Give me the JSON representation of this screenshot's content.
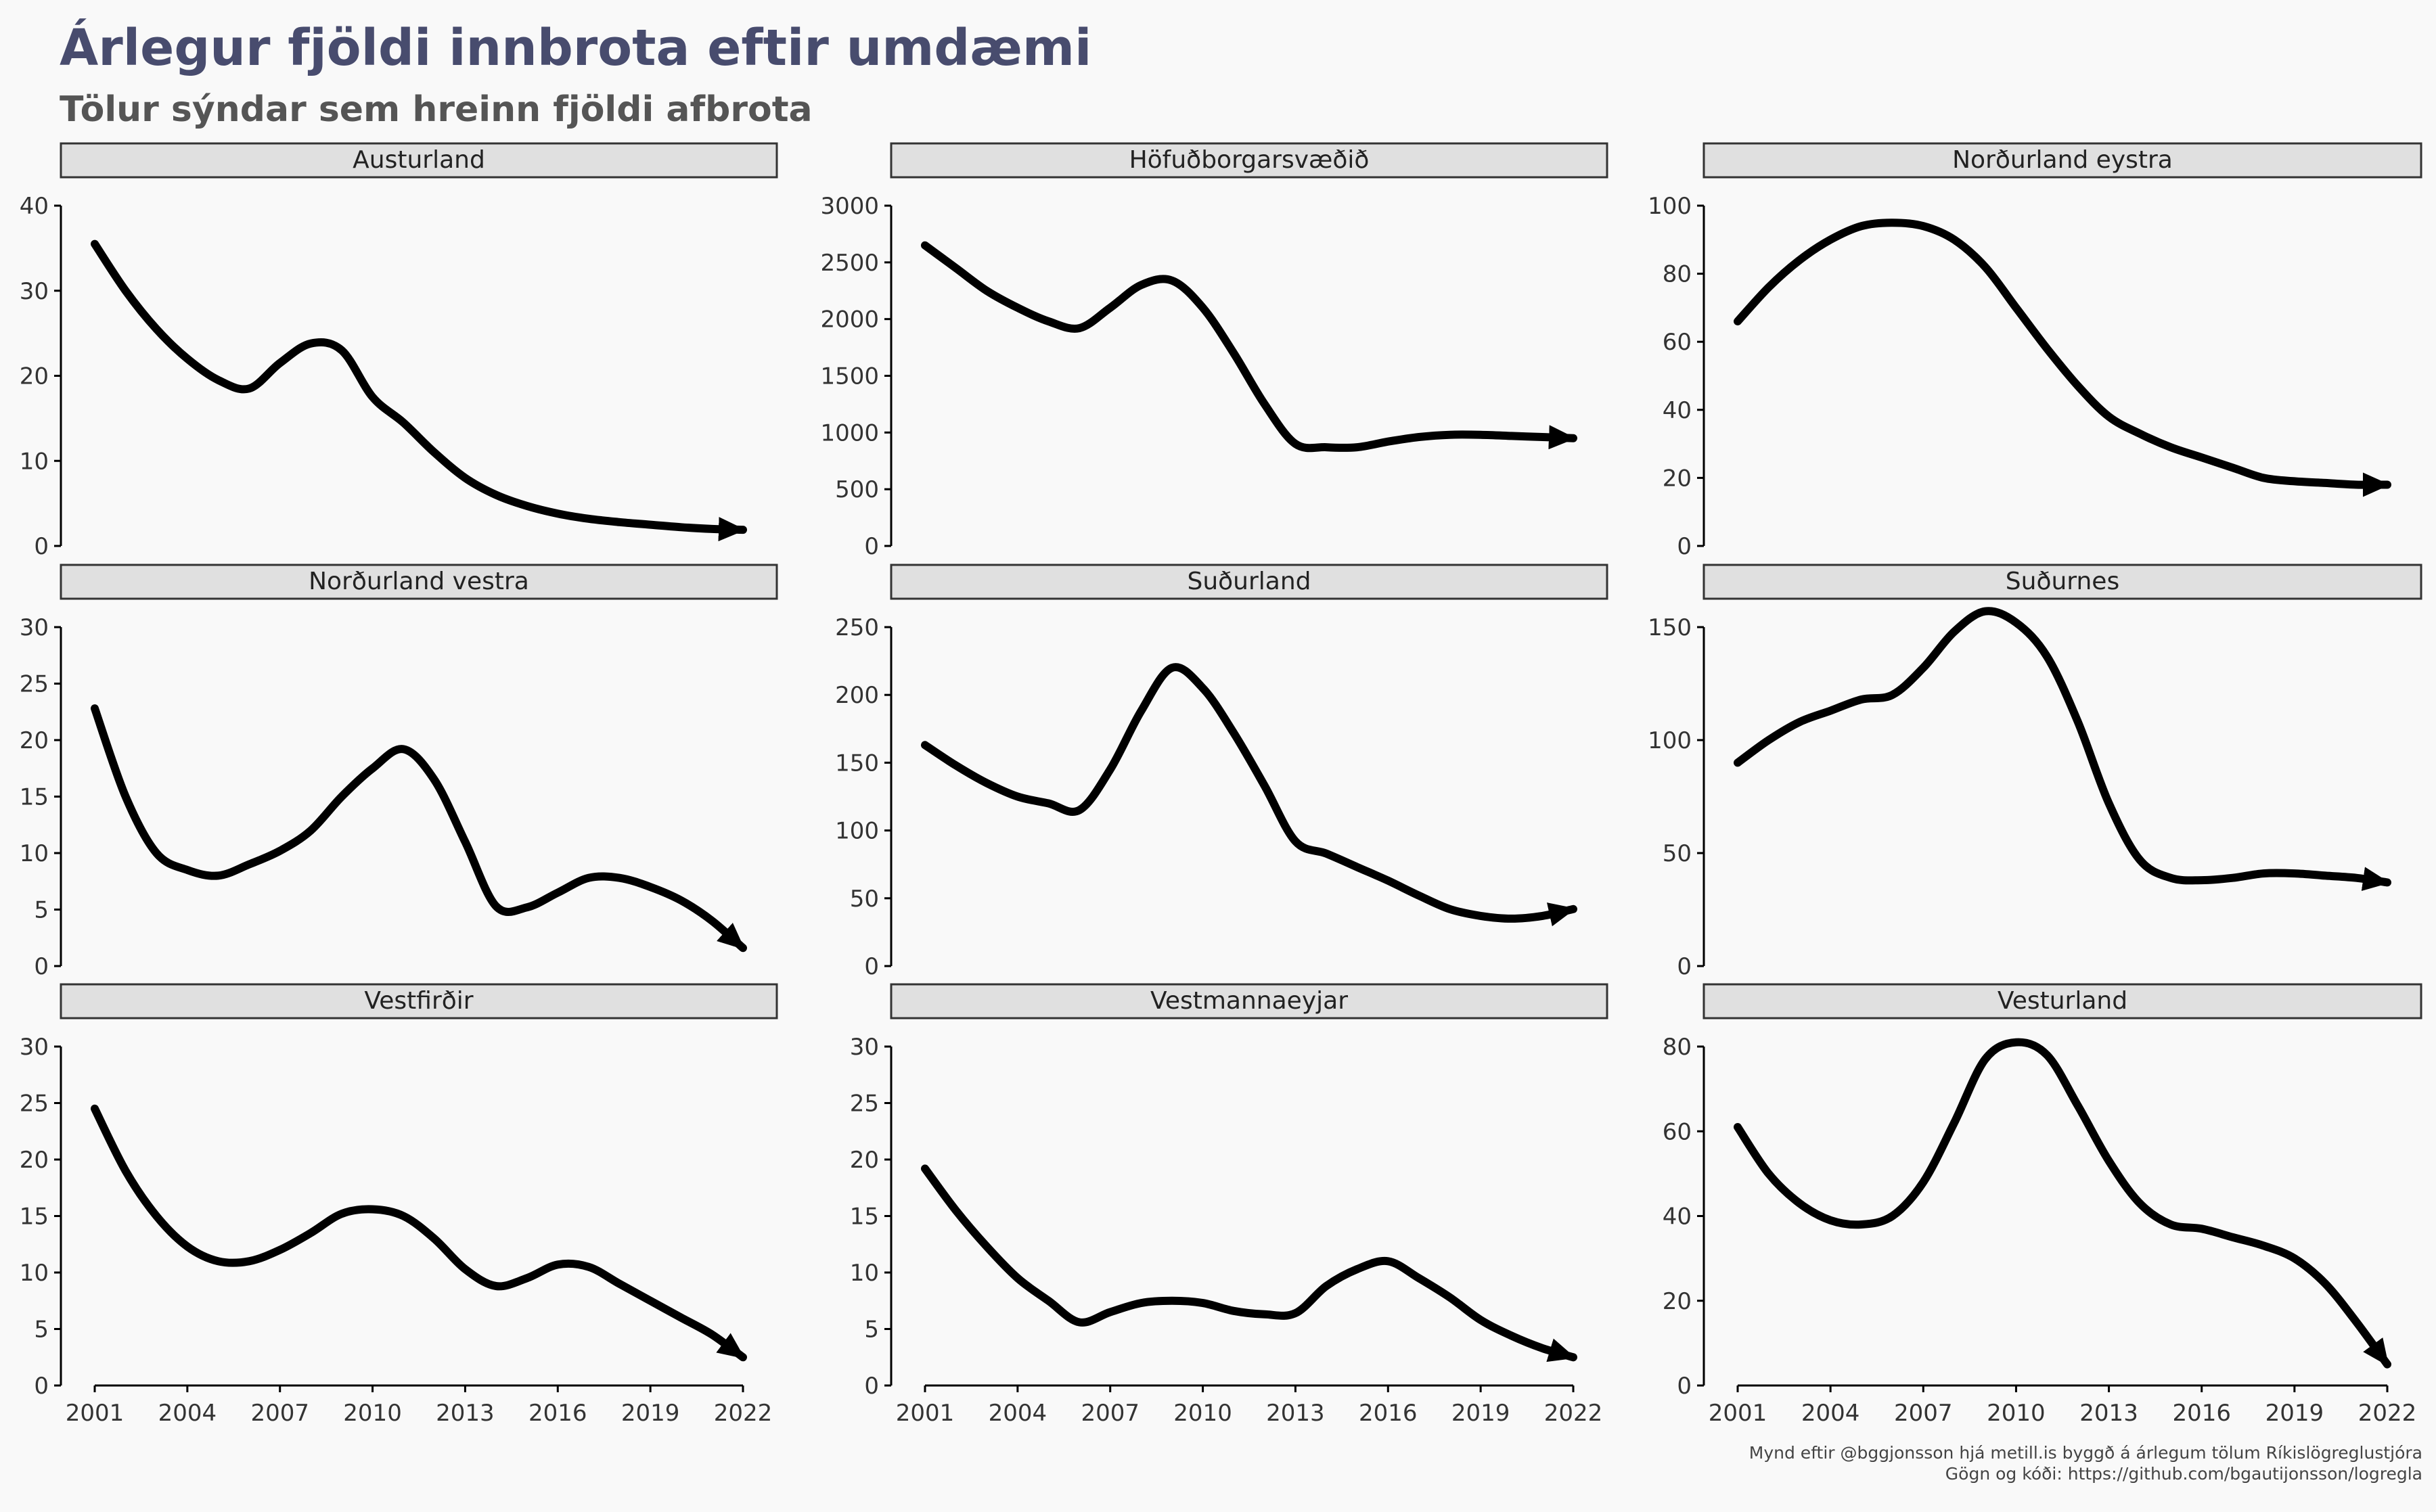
{
  "title": "Árlegur fjöldi innbrota eftir umdæmi",
  "subtitle": "Tölur sýndar sem hreinn fjöldi afbrota",
  "caption": {
    "line1": "Mynd eftir @bggjonsson hjá metill.is byggð á árlegum tölum Ríkislögreglustjóra",
    "line2": "Gögn og kóði: https://github.com/bgautijonsson/logregla"
  },
  "colors": {
    "background": "#f9f9f9",
    "title": "#484c6e",
    "strip_fill": "#e0e0e0",
    "line": "#000000"
  },
  "x_ticks": [
    2001,
    2004,
    2007,
    2010,
    2013,
    2016,
    2019,
    2022
  ],
  "chart_data": [
    {
      "type": "line",
      "title": "Austurland",
      "ylim": [
        0,
        40
      ],
      "y_ticks": [
        0,
        10,
        20,
        30,
        40
      ],
      "x": [
        2001,
        2002,
        2003,
        2004,
        2005,
        2006,
        2007,
        2008,
        2009,
        2010,
        2011,
        2012,
        2013,
        2014,
        2015,
        2016,
        2017,
        2018,
        2019,
        2020,
        2021,
        2022
      ],
      "y": [
        35.5,
        30,
        25.5,
        22,
        19.5,
        18.5,
        21.5,
        23.8,
        23,
        17.5,
        14.5,
        11,
        8,
        6,
        4.7,
        3.8,
        3.2,
        2.8,
        2.5,
        2.2,
        2,
        1.9
      ]
    },
    {
      "type": "line",
      "title": "Höfuðborgarsvæðið",
      "ylim": [
        0,
        3000
      ],
      "y_ticks": [
        0,
        500,
        1000,
        1500,
        2000,
        2500,
        3000
      ],
      "x": [
        2001,
        2002,
        2003,
        2004,
        2005,
        2006,
        2007,
        2008,
        2009,
        2010,
        2011,
        2012,
        2013,
        2014,
        2015,
        2016,
        2017,
        2018,
        2019,
        2020,
        2021,
        2022
      ],
      "y": [
        2650,
        2450,
        2250,
        2100,
        1980,
        1920,
        2100,
        2300,
        2340,
        2100,
        1700,
        1250,
        900,
        870,
        870,
        920,
        960,
        980,
        980,
        970,
        960,
        950
      ]
    },
    {
      "type": "line",
      "title": "Norðurland eystra",
      "ylim": [
        0,
        100
      ],
      "y_ticks": [
        0,
        20,
        40,
        60,
        80,
        100
      ],
      "x": [
        2001,
        2002,
        2003,
        2004,
        2005,
        2006,
        2007,
        2008,
        2009,
        2010,
        2011,
        2012,
        2013,
        2014,
        2015,
        2016,
        2017,
        2018,
        2019,
        2020,
        2021,
        2022
      ],
      "y": [
        66,
        76,
        84,
        90,
        94,
        95,
        94,
        90,
        82,
        70,
        58,
        47,
        38,
        33,
        29,
        26,
        23,
        20,
        19,
        18.5,
        18,
        18
      ]
    },
    {
      "type": "line",
      "title": "Norðurland vestra",
      "ylim": [
        0,
        30
      ],
      "y_ticks": [
        0,
        5,
        10,
        15,
        20,
        25,
        30
      ],
      "x": [
        2001,
        2002,
        2003,
        2004,
        2005,
        2006,
        2007,
        2008,
        2009,
        2010,
        2011,
        2012,
        2013,
        2014,
        2015,
        2016,
        2017,
        2018,
        2019,
        2020,
        2021,
        2022
      ],
      "y": [
        22.8,
        15,
        10,
        8.5,
        8,
        9,
        10.2,
        12,
        15,
        17.5,
        19.2,
        16.5,
        11,
        5.3,
        5.2,
        6.5,
        7.8,
        7.8,
        7,
        5.8,
        4,
        1.6
      ]
    },
    {
      "type": "line",
      "title": "Suðurland",
      "ylim": [
        0,
        250
      ],
      "y_ticks": [
        0,
        50,
        100,
        150,
        200,
        250
      ],
      "x": [
        2001,
        2002,
        2003,
        2004,
        2005,
        2006,
        2007,
        2008,
        2009,
        2010,
        2011,
        2012,
        2013,
        2014,
        2015,
        2016,
        2017,
        2018,
        2019,
        2020,
        2021,
        2022
      ],
      "y": [
        163,
        148,
        135,
        125,
        120,
        115,
        145,
        188,
        220,
        205,
        172,
        133,
        92,
        83,
        73,
        63,
        52,
        42,
        37,
        35,
        37,
        42
      ]
    },
    {
      "type": "line",
      "title": "Suðurnes",
      "ylim": [
        0,
        170
      ],
      "y_ticks": [
        0,
        50,
        100,
        150
      ],
      "x": [
        2001,
        2002,
        2003,
        2004,
        2005,
        2006,
        2007,
        2008,
        2009,
        2010,
        2011,
        2012,
        2013,
        2014,
        2015,
        2016,
        2017,
        2018,
        2019,
        2020,
        2021,
        2022
      ],
      "y": [
        90,
        100,
        108,
        113,
        118,
        120,
        132,
        148,
        157,
        152,
        137,
        108,
        72,
        47,
        39,
        38,
        39,
        41,
        41,
        40,
        39,
        37
      ]
    },
    {
      "type": "line",
      "title": "Vestfirðir",
      "ylim": [
        0,
        30
      ],
      "y_ticks": [
        0,
        5,
        10,
        15,
        20,
        25,
        30
      ],
      "x": [
        2001,
        2002,
        2003,
        2004,
        2005,
        2006,
        2007,
        2008,
        2009,
        2010,
        2011,
        2012,
        2013,
        2014,
        2015,
        2016,
        2017,
        2018,
        2019,
        2020,
        2021,
        2022
      ],
      "y": [
        24.5,
        19,
        15,
        12.3,
        11,
        11,
        12,
        13.5,
        15.2,
        15.6,
        15,
        13,
        10.3,
        8.8,
        9.5,
        10.7,
        10.5,
        9,
        7.5,
        6,
        4.5,
        2.5
      ]
    },
    {
      "type": "line",
      "title": "Vestmannaeyjar",
      "ylim": [
        0,
        30
      ],
      "y_ticks": [
        0,
        5,
        10,
        15,
        20,
        25,
        30
      ],
      "x": [
        2001,
        2002,
        2003,
        2004,
        2005,
        2006,
        2007,
        2008,
        2009,
        2010,
        2011,
        2012,
        2013,
        2014,
        2015,
        2016,
        2017,
        2018,
        2019,
        2020,
        2021,
        2022
      ],
      "y": [
        19.2,
        15.5,
        12.3,
        9.5,
        7.5,
        5.6,
        6.5,
        7.3,
        7.5,
        7.3,
        6.6,
        6.3,
        6.4,
        8.8,
        10.3,
        11,
        9.5,
        7.8,
        5.8,
        4.4,
        3.3,
        2.5
      ]
    },
    {
      "type": "line",
      "title": "Vesturland",
      "ylim": [
        0,
        85
      ],
      "y_ticks": [
        0,
        20,
        40,
        60,
        80
      ],
      "x": [
        2001,
        2002,
        2003,
        2004,
        2005,
        2006,
        2007,
        2008,
        2009,
        2010,
        2011,
        2012,
        2013,
        2014,
        2015,
        2016,
        2017,
        2018,
        2019,
        2020,
        2021,
        2022
      ],
      "y": [
        61,
        50,
        43,
        39,
        38,
        40,
        48,
        62,
        77,
        81,
        78,
        66,
        53,
        43,
        38,
        37,
        35,
        33,
        30,
        24,
        15,
        5
      ]
    }
  ]
}
